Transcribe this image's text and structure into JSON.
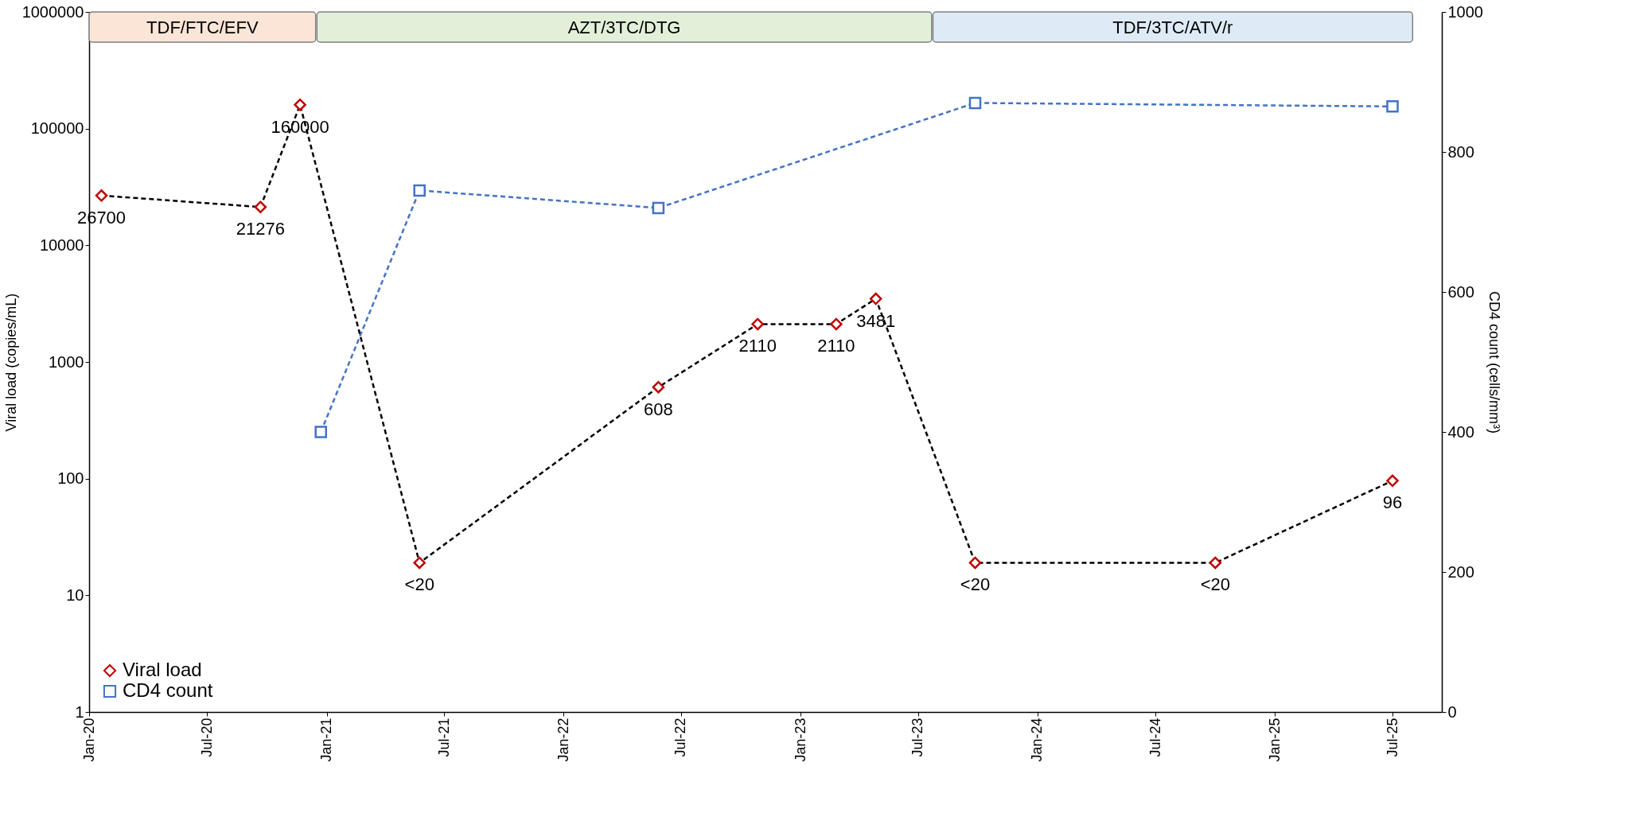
{
  "chart_data": {
    "type": "line",
    "ylabel": "Viral load (copies/mL)",
    "y2label": "CD4 count (cells/mm³)",
    "series": [
      {
        "name": "Viral load",
        "color": "#000000",
        "colors": [
          "#c00000",
          "#c00000",
          "#c00000",
          "#c00000",
          "#c00000",
          "#c00000",
          "#c00000",
          "#c00000",
          "#c00000",
          "#c00000",
          "#c00000"
        ],
        "marker": "diamond",
        "line_style": "dashed",
        "x": [
          "2020-01-20",
          "2020-09-21",
          "2020-11-21",
          "2021-05-24",
          "2022-05-27",
          "2022-10-27",
          "2023-02-25",
          "2023-04-27",
          "2023-09-27",
          "2024-10-01",
          "2025-07-01"
        ],
        "values": [
          26700,
          21276,
          160000,
          19,
          608,
          2110,
          2110,
          3481,
          19,
          19,
          96
        ],
        "value_labels": [
          "26700",
          "21276",
          "160000",
          "<20",
          "608",
          "2110",
          "2110",
          "3481",
          "<20",
          "<20",
          "96"
        ]
      },
      {
        "name": "CD4 count",
        "color": "#4472c4",
        "marker": "square",
        "line_style": "dashed",
        "axis": "y2",
        "x": [
          "2020-12-23",
          "2021-05-24",
          "2022-05-27",
          "2023-09-27",
          "2025-07-01"
        ],
        "values": [
          400,
          745,
          720,
          870,
          865
        ]
      }
    ],
    "bands": [
      {
        "axis": "x",
        "from": "2020-01-01",
        "to": "2020-12-15",
        "label": "TDF/FTC/EFV",
        "color": "#fbe5d6"
      },
      {
        "axis": "x",
        "from": "2020-12-17",
        "to": "2023-07-22",
        "label": "AZT/3TC/DTG",
        "color": "#e2f0d9"
      },
      {
        "axis": "x",
        "from": "2023-07-24",
        "to": "2025-08-01",
        "label": "TDF/3TC/ATV/r",
        "color": "#deebf7"
      }
    ],
    "log": "y",
    "xlim": [
      "2020-01-01",
      "2025-09-15"
    ],
    "xticks": [
      {
        "value": "2020-01-01",
        "label": "Jan-20"
      },
      {
        "value": "2020-07-01",
        "label": "Jul-20"
      },
      {
        "value": "2021-01-01",
        "label": "Jan-21"
      },
      {
        "value": "2021-07-01",
        "label": "Jul-21"
      },
      {
        "value": "2022-01-01",
        "label": "Jan-22"
      },
      {
        "value": "2022-07-01",
        "label": "Jul-22"
      },
      {
        "value": "2023-01-01",
        "label": "Jan-23"
      },
      {
        "value": "2023-07-01",
        "label": "Jul-23"
      },
      {
        "value": "2024-01-01",
        "label": "Jan-24"
      },
      {
        "value": "2024-07-01",
        "label": "Jul-24"
      },
      {
        "value": "2025-01-01",
        "label": "Jan-25"
      },
      {
        "value": "2025-07-01",
        "label": "Jul-25"
      }
    ],
    "ylim": [
      1,
      1000000
    ],
    "yticks": [
      1,
      10,
      100,
      1000,
      10000,
      100000,
      1000000
    ],
    "y2lim": [
      0,
      1000
    ],
    "y2ticks": [
      0,
      200,
      400,
      600,
      800,
      1000
    ],
    "grid": false,
    "legend": "bottom left"
  }
}
